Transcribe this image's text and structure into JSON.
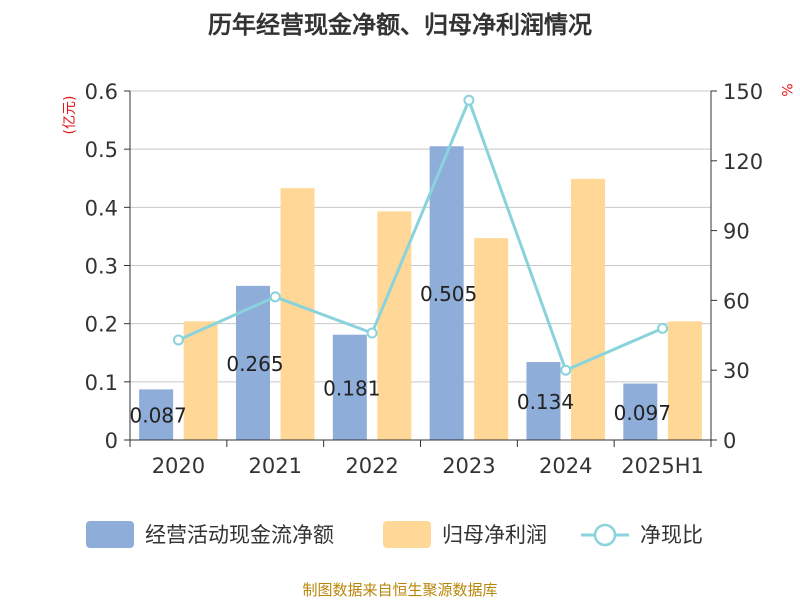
{
  "chart_data": {
    "type": "bar",
    "title": "历年经营现金净额、归母净利润情况",
    "categories": [
      "2020",
      "2021",
      "2022",
      "2023",
      "2024",
      "2025H1"
    ],
    "series": [
      {
        "name": "经营活动现金流净额",
        "type": "bar",
        "axis": "left",
        "color": "#8eadd9",
        "values": [
          0.087,
          0.265,
          0.181,
          0.505,
          0.134,
          0.097
        ],
        "labels": [
          "0.087",
          "0.265",
          "0.181",
          "0.505",
          "0.134",
          "0.097"
        ]
      },
      {
        "name": "归母净利润",
        "type": "bar",
        "axis": "left",
        "color": "#ffd897",
        "values": [
          0.204,
          0.433,
          0.393,
          0.347,
          0.449,
          0.204
        ]
      },
      {
        "name": "净现比",
        "type": "line",
        "axis": "right",
        "color": "#8ad3dc",
        "values": [
          43,
          61.5,
          46,
          146,
          30,
          48
        ]
      }
    ],
    "left_axis": {
      "unit": "(亿元)",
      "range": [
        0,
        0.6
      ],
      "ticks": [
        "0",
        "0.1",
        "0.2",
        "0.3",
        "0.4",
        "0.5",
        "0.6"
      ]
    },
    "right_axis": {
      "unit": "%",
      "range": [
        0,
        150
      ],
      "ticks": [
        "0",
        "30",
        "60",
        "90",
        "120",
        "150"
      ]
    },
    "grid": true,
    "legend_position": "bottom",
    "source": "制图数据来自恒生聚源数据库"
  }
}
